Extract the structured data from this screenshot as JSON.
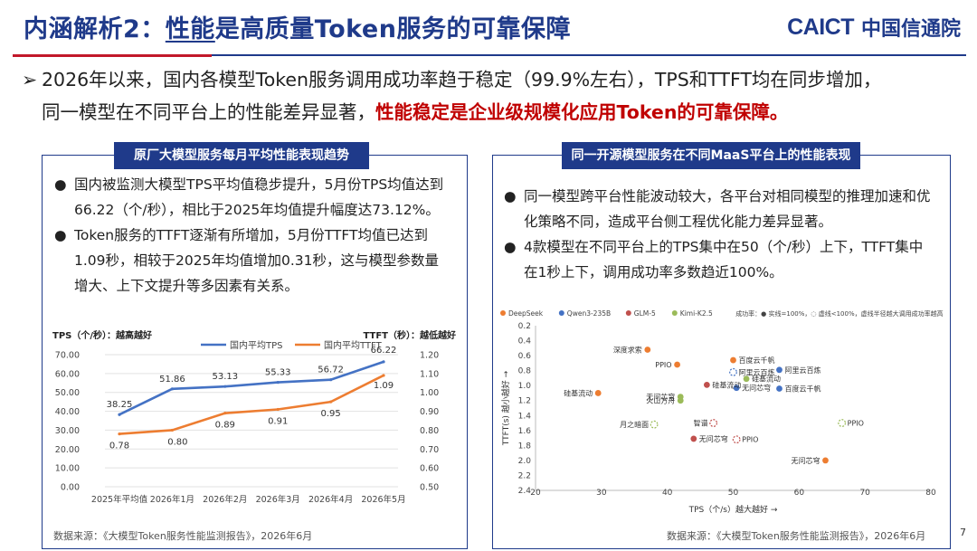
{
  "header": {
    "title_prefix": "内涵解析2：",
    "title_emph": "性能",
    "title_rest": "是高质量Token服务的可靠保障",
    "logo_mark": "CAICT",
    "logo_cn": "中国信通院"
  },
  "summary": {
    "arrow": "➢",
    "line1": "2026年以来，国内各模型Token服务调用成功率趋于稳定（99.9%左右），TPS和TTFT均在同步增加，",
    "line2_normal": "同一模型在不同平台上的性能差异显著，",
    "line2_red": "性能稳定是企业级规模化应用Token的可靠保障。"
  },
  "left_panel": {
    "title": "原厂大模型服务每月平均性能表现趋势",
    "bullets": [
      {
        "dot": "●",
        "text": "国内被监测大模型TPS平均值稳步提升，5月份TPS均值达到66.22（个/秒），相比于2025年均值提升幅度达73.12%。"
      },
      {
        "dot": "●",
        "text": "Token服务的TTFT逐渐有所增加，5月份TTFT均值已达到1.09秒，相较于2025年均值增加0.31秒，这与模型参数量增大、上下文提升等多因素有关系。"
      }
    ],
    "source": "数据来源：《大模型Token服务性能监测报告》，2026年6月"
  },
  "right_panel": {
    "title": "同一开源模型服务在不同MaaS平台上的性能表现",
    "bullets": [
      {
        "dot": "●",
        "text": "同一模型跨平台性能波动较大，各平台对相同模型的推理加速和优化策略不同，造成平台侧工程优化能力差异显著。"
      },
      {
        "dot": "●",
        "text": "4款模型在不同平台上的TPS集中在50（个/秒）上下，TTFT集中在1秒上下，调用成功率多数趋近100%。"
      }
    ],
    "source": "数据来源：《大模型Token服务性能监测报告》，2026年6月"
  },
  "page_number": "7",
  "chart_data": [
    {
      "type": "line",
      "title": "",
      "ylabel": "TPS（个/秒）：越高越好",
      "y2label": "TTFT（秒）：越低越好",
      "categories": [
        "2025年平均值",
        "2026年1月",
        "2026年2月",
        "2026年3月",
        "2026年4月",
        "2026年5月"
      ],
      "ylim": [
        0,
        70
      ],
      "yticks": [
        "0.00",
        "10.00",
        "20.00",
        "30.00",
        "40.00",
        "50.00",
        "60.00",
        "70.00"
      ],
      "y2lim": [
        0.5,
        1.2
      ],
      "y2ticks": [
        "0.50",
        "0.60",
        "0.70",
        "0.80",
        "0.90",
        "1.00",
        "1.10",
        "1.20"
      ],
      "series": [
        {
          "name": "国内平均TPS",
          "axis": "left",
          "color": "#4472c4",
          "values": [
            38.25,
            51.86,
            53.13,
            55.33,
            56.72,
            66.22
          ],
          "labels": [
            "38.25",
            "51.86",
            "53.13",
            "55.33",
            "56.72",
            "66.22"
          ]
        },
        {
          "name": "国内平均TTFT",
          "axis": "right",
          "color": "#ed7d31",
          "values": [
            0.78,
            0.8,
            0.89,
            0.91,
            0.95,
            1.09
          ],
          "labels": [
            "0.78",
            "0.80",
            "0.89",
            "0.91",
            "0.95",
            "1.09"
          ]
        }
      ],
      "grid": true,
      "legend": "top"
    },
    {
      "type": "scatter",
      "title": "",
      "xlabel": "TPS（个/s）越大越好 →",
      "ylabel": "TTFT(s) 越小越好 →",
      "xlim": [
        20,
        80
      ],
      "xticks": [
        "20",
        "30",
        "40",
        "50",
        "60",
        "70",
        "80"
      ],
      "ylim": [
        0.2,
        2.4
      ],
      "y_inverted": true,
      "yticks": [
        "0.2",
        "0.4",
        "0.6",
        "0.8",
        "1.0",
        "1.2",
        "1.4",
        "1.6",
        "1.8",
        "2.0",
        "2.2",
        "2.4"
      ],
      "grid": false,
      "legend": "top",
      "legend_note": "成功率：● 实线=100%，◌ 虚线<100%，虚线半径越大调用成功率越高",
      "series": [
        {
          "name": "DeepSeek",
          "color": "#ed7d31",
          "points": [
            {
              "x": 37,
              "y": 0.52,
              "label": "深度求索",
              "solid": true
            },
            {
              "x": 41.5,
              "y": 0.72,
              "label": "PPIO",
              "solid": true
            },
            {
              "x": 50,
              "y": 0.66,
              "label": "百度云千帆",
              "solid": true
            },
            {
              "x": 29.5,
              "y": 1.1,
              "label": "硅基流动",
              "solid": true
            },
            {
              "x": 64,
              "y": 2.0,
              "label": "无问芯穹",
              "solid": true
            }
          ]
        },
        {
          "name": "Qwen3-235B",
          "color": "#4472c4",
          "points": [
            {
              "x": 57,
              "y": 0.79,
              "label": "阿里云百炼",
              "solid": true
            },
            {
              "x": 57,
              "y": 1.04,
              "label": "百度云千帆",
              "solid": true
            },
            {
              "x": 50,
              "y": 0.82,
              "label": "阿里云百炼",
              "solid": false
            },
            {
              "x": 50.5,
              "y": 1.03,
              "label": "无问芯穹",
              "solid": true
            }
          ]
        },
        {
          "name": "GLM-5",
          "color": "#c0504d",
          "points": [
            {
              "x": 46,
              "y": 0.99,
              "label": "硅基流动",
              "solid": true
            },
            {
              "x": 44,
              "y": 1.71,
              "label": "无问芯穹",
              "solid": true
            },
            {
              "x": 47,
              "y": 1.5,
              "label": "智谱",
              "solid": false
            },
            {
              "x": 50.5,
              "y": 1.72,
              "label": "PPIO",
              "solid": false
            }
          ]
        },
        {
          "name": "Kimi-K2.5",
          "color": "#9bbb59",
          "points": [
            {
              "x": 52,
              "y": 0.91,
              "label": "硅基流动",
              "solid": true
            },
            {
              "x": 42,
              "y": 1.2,
              "label": "火山方舟",
              "solid": true
            },
            {
              "x": 42,
              "y": 1.15,
              "label": "无问芯穹",
              "solid": true
            },
            {
              "x": 38,
              "y": 1.52,
              "label": "月之暗面",
              "solid": false
            },
            {
              "x": 66.5,
              "y": 1.5,
              "label": "PPIO",
              "solid": false
            }
          ]
        }
      ]
    }
  ],
  "colors": {
    "primary": "#1f3a8a",
    "accent": "#c2182a",
    "red_text": "#c00000"
  }
}
